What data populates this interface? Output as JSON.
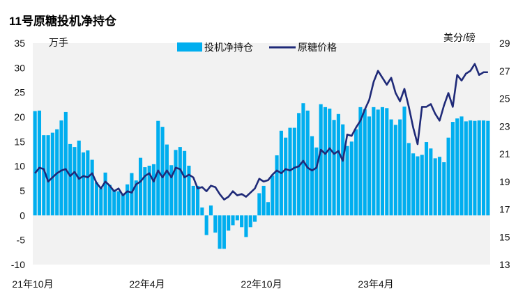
{
  "chart_data": {
    "type": "bar+line",
    "title": "11号原糖投机净持仓",
    "left_unit": "万手",
    "right_unit": "美分/磅",
    "legend": {
      "bar_label": "投机净持仓",
      "line_label": "原糖价格"
    },
    "colors": {
      "bar": "#00AEEF",
      "line": "#1F2A78",
      "plot_bg": "#F2F2F2"
    },
    "x_labels": [
      "21年10月",
      "22年4月",
      "22年10月",
      "23年4月"
    ],
    "x_label_week_index": [
      0,
      26,
      52,
      78
    ],
    "y_left": {
      "min": -10,
      "max": 35,
      "ticks": [
        35,
        30,
        25,
        20,
        15,
        10,
        5,
        0,
        -5,
        -10
      ]
    },
    "y_right": {
      "min": 13,
      "max": 29,
      "ticks": [
        29,
        27,
        25,
        23,
        21,
        19,
        17,
        15,
        13
      ]
    },
    "weeks": 104,
    "bar_series": {
      "name": "投机净持仓",
      "unit": "万手",
      "values": [
        21.2,
        21.3,
        16.3,
        16.3,
        16.8,
        17.5,
        19.3,
        21.0,
        14.5,
        13.9,
        15.2,
        12.8,
        13.2,
        11.3,
        6.7,
        5.5,
        8.7,
        6.2,
        5.2,
        4.9,
        4.4,
        6.3,
        8.6,
        7.1,
        11.7,
        9.8,
        10.1,
        10.4,
        19.2,
        18.0,
        14.4,
        10.2,
        13.3,
        13.9,
        13.1,
        10.1,
        6.0,
        6.0,
        1.6,
        -4.0,
        2.0,
        -3.5,
        -6.8,
        -6.8,
        -3.1,
        -2.0,
        -1.0,
        -2.4,
        -4.4,
        -2.4,
        -1.3,
        4.5,
        6.0,
        2.7,
        8.1,
        12.2,
        17.2,
        15.8,
        17.8,
        17.8,
        20.8,
        22.8,
        21.3,
        16.1,
        13.8,
        22.6,
        22.0,
        21.7,
        19.4,
        20.6,
        18.5,
        14.1,
        15.0,
        17.5,
        22.0,
        21.6,
        20.1,
        22.0,
        21.5,
        22.0,
        21.8,
        19.5,
        18.4,
        19.5,
        22.1,
        14.7,
        12.6,
        12.0,
        12.3,
        14.9,
        13.6,
        11.6,
        11.9,
        10.8,
        15.8,
        19.0,
        19.7,
        20.1,
        19.1,
        19.3,
        19.2,
        19.3,
        19.3,
        19.2
      ]
    },
    "line_series": {
      "name": "原糖价格",
      "unit": "美分/磅",
      "values": [
        19.6,
        20.0,
        19.9,
        19.0,
        19.3,
        19.6,
        19.8,
        19.9,
        19.4,
        19.7,
        19.2,
        19.4,
        19.3,
        19.6,
        18.9,
        18.5,
        19.0,
        18.7,
        18.3,
        18.5,
        18.0,
        18.3,
        18.2,
        18.8,
        19.0,
        19.4,
        19.6,
        19.0,
        19.8,
        19.3,
        19.8,
        19.3,
        20.0,
        19.9,
        19.3,
        19.5,
        19.3,
        18.5,
        18.6,
        18.3,
        18.7,
        18.6,
        18.1,
        17.7,
        17.9,
        18.3,
        18.0,
        18.1,
        17.9,
        18.2,
        18.5,
        19.2,
        19.0,
        19.1,
        19.5,
        19.8,
        19.6,
        19.9,
        19.8,
        20.0,
        20.1,
        20.5,
        20.0,
        19.8,
        20.0,
        21.3,
        21.0,
        21.4,
        21.0,
        21.2,
        20.5,
        22.4,
        22.3,
        22.9,
        23.4,
        24.2,
        24.9,
        26.2,
        27.0,
        26.5,
        26.0,
        26.5,
        25.4,
        24.8,
        25.7,
        24.4,
        22.9,
        21.7,
        24.4,
        24.4,
        24.6,
        23.9,
        23.4,
        24.5,
        25.4,
        24.4,
        26.7,
        26.3,
        26.8,
        27.0,
        27.5,
        26.7,
        26.9,
        26.9
      ]
    }
  }
}
